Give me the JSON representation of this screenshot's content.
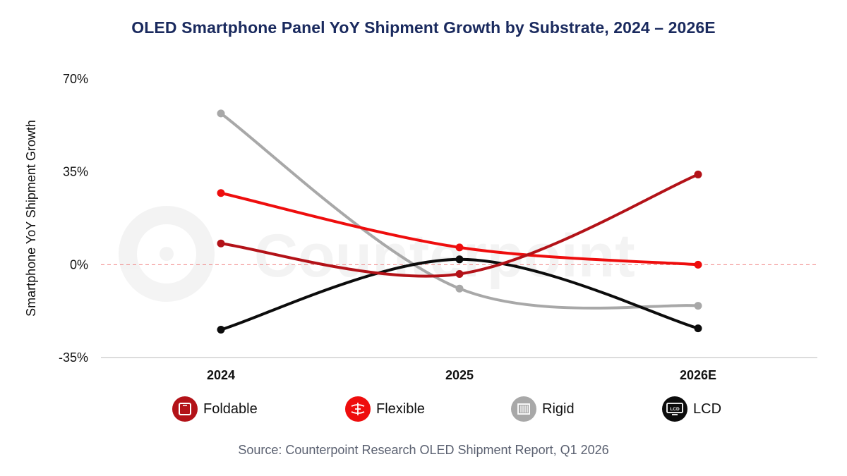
{
  "page": {
    "title": "OLED Smartphone Panel YoY Shipment Growth by Substrate, 2024 – 2026E",
    "source": "Source: Counterpoint Research OLED Shipment Report, Q1 2026",
    "watermark": "Counterpoint"
  },
  "chart_data": {
    "type": "line",
    "title": "OLED Smartphone Panel YoY Shipment Growth by Substrate, 2024 – 2026E",
    "xlabel": "",
    "ylabel": "Smartphone YoY Shipment Growth",
    "categories": [
      "2024",
      "2025",
      "2026E"
    ],
    "ylim": [
      -35,
      70
    ],
    "yticks": [
      70,
      35,
      0,
      -35
    ],
    "ytick_labels": [
      "70%",
      "35%",
      "0%",
      "-35%"
    ],
    "unit": "%",
    "grid": false,
    "zero_line": "dashed",
    "smooth": true,
    "legend_position": "bottom",
    "series": [
      {
        "name": "Foldable",
        "values": [
          8,
          -3.5,
          34
        ],
        "color": "#b31218",
        "icon": "foldable-phone-icon"
      },
      {
        "name": "Flexible",
        "values": [
          27,
          6.5,
          0
        ],
        "color": "#ee0d0d",
        "icon": "flexible-panel-icon"
      },
      {
        "name": "Rigid",
        "values": [
          57,
          -9,
          -15.5
        ],
        "color": "#a8a8a8",
        "icon": "rigid-panel-icon"
      },
      {
        "name": "LCD",
        "values": [
          -24.5,
          2,
          -24
        ],
        "color": "#0c0c0c",
        "icon": "lcd-monitor-icon"
      }
    ]
  }
}
